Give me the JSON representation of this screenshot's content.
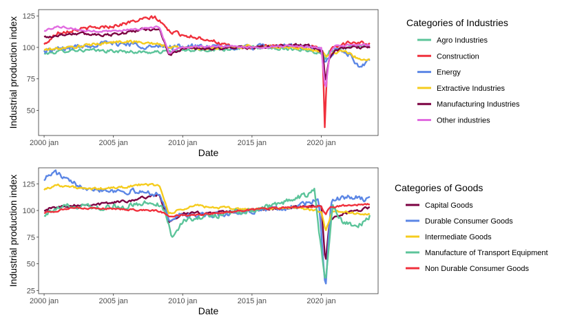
{
  "chart_data": [
    {
      "type": "line",
      "xlabel": "Date",
      "ylabel": "Industrial production index",
      "x_ticks": [
        "2000 jan",
        "2005 jan",
        "2010 jan",
        "2015 jan",
        "2020 jan"
      ],
      "x_range": [
        1999.6,
        2024.1
      ],
      "y_ticks": [
        50,
        75,
        100,
        125
      ],
      "ylim": [
        30,
        130
      ],
      "legend_title": "Categories of Industries",
      "legend_position": "right",
      "series": [
        {
          "name": "Agro Industries",
          "color": "#5cc49a",
          "keypoints": [
            [
              2000.0,
              95
            ],
            [
              2002.0,
              98
            ],
            [
              2005.0,
              97
            ],
            [
              2008.0,
              96
            ],
            [
              2009.0,
              97
            ],
            [
              2012.0,
              98
            ],
            [
              2015.0,
              100
            ],
            [
              2018.0,
              99
            ],
            [
              2020.0,
              96
            ],
            [
              2020.3,
              90
            ],
            [
              2020.6,
              98
            ],
            [
              2022.0,
              100
            ],
            [
              2023.5,
              101
            ]
          ],
          "noise": 2.0
        },
        {
          "name": "Construction",
          "color": "#f0303c",
          "keypoints": [
            [
              2000.0,
              102
            ],
            [
              2001.0,
              112
            ],
            [
              2003.0,
              115
            ],
            [
              2005.0,
              117
            ],
            [
              2007.0,
              122
            ],
            [
              2008.0,
              124
            ],
            [
              2008.6,
              118
            ],
            [
              2009.0,
              113
            ],
            [
              2010.0,
              110
            ],
            [
              2012.0,
              106
            ],
            [
              2013.5,
              100
            ],
            [
              2015.0,
              100
            ],
            [
              2017.0,
              101
            ],
            [
              2019.5,
              101
            ],
            [
              2020.1,
              95
            ],
            [
              2020.25,
              37
            ],
            [
              2020.4,
              80
            ],
            [
              2020.7,
              100
            ],
            [
              2022.0,
              104
            ],
            [
              2023.5,
              103
            ]
          ],
          "noise": 2.2
        },
        {
          "name": "Energy",
          "color": "#5b86e5",
          "keypoints": [
            [
              2000.0,
              97
            ],
            [
              2002.0,
              100
            ],
            [
              2004.0,
              103
            ],
            [
              2006.0,
              103
            ],
            [
              2008.0,
              100
            ],
            [
              2010.0,
              101
            ],
            [
              2012.0,
              100
            ],
            [
              2015.0,
              100
            ],
            [
              2018.0,
              101
            ],
            [
              2020.0,
              98
            ],
            [
              2020.3,
              88
            ],
            [
              2021.0,
              98
            ],
            [
              2022.0,
              95
            ],
            [
              2022.8,
              82
            ],
            [
              2023.5,
              90
            ]
          ],
          "noise": 3.2
        },
        {
          "name": "Extractive Industries",
          "color": "#f5cc1e",
          "keypoints": [
            [
              2000.0,
              98
            ],
            [
              2002.0,
              100
            ],
            [
              2004.0,
              103
            ],
            [
              2006.0,
              105
            ],
            [
              2008.0,
              103
            ],
            [
              2009.0,
              100
            ],
            [
              2010.0,
              100
            ],
            [
              2012.0,
              99
            ],
            [
              2015.0,
              101
            ],
            [
              2018.0,
              100
            ],
            [
              2020.0,
              97
            ],
            [
              2020.3,
              93
            ],
            [
              2021.5,
              98
            ],
            [
              2022.5,
              92
            ],
            [
              2023.5,
              90
            ]
          ],
          "noise": 1.8
        },
        {
          "name": "Manufacturing Industries",
          "color": "#7b0041",
          "keypoints": [
            [
              2000.0,
              108
            ],
            [
              2002.0,
              111
            ],
            [
              2005.0,
              110
            ],
            [
              2007.0,
              114
            ],
            [
              2008.3,
              115
            ],
            [
              2009.0,
              94
            ],
            [
              2010.0,
              99
            ],
            [
              2012.0,
              99
            ],
            [
              2015.0,
              100
            ],
            [
              2019.0,
              102
            ],
            [
              2020.1,
              97
            ],
            [
              2020.3,
              72
            ],
            [
              2020.6,
              92
            ],
            [
              2021.0,
              98
            ],
            [
              2022.0,
              100
            ],
            [
              2023.5,
              100
            ]
          ],
          "noise": 1.8
        },
        {
          "name": "Other industries",
          "color": "#e16be0",
          "keypoints": [
            [
              2000.0,
              113
            ],
            [
              2001.0,
              117
            ],
            [
              2003.0,
              113
            ],
            [
              2005.0,
              113
            ],
            [
              2007.0,
              115
            ],
            [
              2008.3,
              116
            ],
            [
              2009.0,
              96
            ],
            [
              2010.0,
              100
            ],
            [
              2012.0,
              101
            ],
            [
              2015.0,
              100
            ],
            [
              2018.0,
              101
            ],
            [
              2020.0,
              100
            ],
            [
              2020.3,
              65
            ],
            [
              2020.6,
              95
            ],
            [
              2021.0,
              101
            ],
            [
              2022.0,
              102
            ],
            [
              2023.5,
              102
            ]
          ],
          "noise": 1.2
        }
      ]
    },
    {
      "type": "line",
      "xlabel": "Date",
      "ylabel": "Industrial production index",
      "x_ticks": [
        "2000 jan",
        "2005 jan",
        "2010 jan",
        "2015 jan",
        "2020 jan"
      ],
      "x_range": [
        1999.6,
        2024.1
      ],
      "y_ticks": [
        25,
        50,
        75,
        100,
        125
      ],
      "ylim": [
        22,
        140
      ],
      "legend_title": "Categories of Goods",
      "legend_position": "right",
      "series": [
        {
          "name": "Capital Goods",
          "color": "#7b0041",
          "keypoints": [
            [
              2000.0,
              101
            ],
            [
              2002.0,
              105
            ],
            [
              2004.0,
              106
            ],
            [
              2006.0,
              109
            ],
            [
              2008.3,
              115
            ],
            [
              2009.0,
              90
            ],
            [
              2010.0,
              97
            ],
            [
              2012.0,
              98
            ],
            [
              2015.0,
              100
            ],
            [
              2018.0,
              103
            ],
            [
              2020.0,
              104
            ],
            [
              2020.3,
              50
            ],
            [
              2020.6,
              90
            ],
            [
              2021.0,
              96
            ],
            [
              2022.0,
              98
            ],
            [
              2023.5,
              103
            ]
          ],
          "noise": 2.0
        },
        {
          "name": "Durable Consumer Goods",
          "color": "#5b86e5",
          "keypoints": [
            [
              2000.0,
              130
            ],
            [
              2000.8,
              136
            ],
            [
              2002.0,
              125
            ],
            [
              2004.0,
              120
            ],
            [
              2006.0,
              118
            ],
            [
              2008.3,
              116
            ],
            [
              2009.0,
              92
            ],
            [
              2010.0,
              96
            ],
            [
              2012.0,
              95
            ],
            [
              2015.0,
              100
            ],
            [
              2018.0,
              103
            ],
            [
              2019.8,
              110
            ],
            [
              2020.3,
              27
            ],
            [
              2020.7,
              110
            ],
            [
              2021.5,
              112
            ],
            [
              2022.5,
              112
            ],
            [
              2023.5,
              110
            ]
          ],
          "noise": 4.0
        },
        {
          "name": "Intermediate Goods",
          "color": "#f5cc1e",
          "keypoints": [
            [
              2000.0,
              120
            ],
            [
              2001.0,
              124
            ],
            [
              2003.0,
              120
            ],
            [
              2005.0,
              121
            ],
            [
              2007.0,
              124
            ],
            [
              2008.3,
              124
            ],
            [
              2009.0,
              97
            ],
            [
              2011.0,
              105
            ],
            [
              2012.0,
              103
            ],
            [
              2015.0,
              101
            ],
            [
              2018.0,
              103
            ],
            [
              2020.0,
              99
            ],
            [
              2020.3,
              80
            ],
            [
              2020.8,
              100
            ],
            [
              2022.0,
              98
            ],
            [
              2023.5,
              96
            ]
          ],
          "noise": 1.8
        },
        {
          "name": "Manufacture of Transport Equipment",
          "color": "#5cc49a",
          "keypoints": [
            [
              2000.0,
              97
            ],
            [
              2002.0,
              105
            ],
            [
              2004.0,
              103
            ],
            [
              2006.0,
              104
            ],
            [
              2008.0,
              108
            ],
            [
              2008.7,
              100
            ],
            [
              2009.2,
              76
            ],
            [
              2010.0,
              90
            ],
            [
              2012.0,
              95
            ],
            [
              2015.0,
              100
            ],
            [
              2018.0,
              110
            ],
            [
              2019.5,
              118
            ],
            [
              2020.3,
              30
            ],
            [
              2020.8,
              105
            ],
            [
              2021.5,
              90
            ],
            [
              2022.5,
              83
            ],
            [
              2023.5,
              95
            ]
          ],
          "noise": 4.0
        },
        {
          "name": "Non Durable Consumer Goods",
          "color": "#f0303c",
          "keypoints": [
            [
              2000.0,
              98
            ],
            [
              2002.0,
              102
            ],
            [
              2004.0,
              102
            ],
            [
              2006.0,
              101
            ],
            [
              2008.0,
              100
            ],
            [
              2008.6,
              98
            ],
            [
              2009.0,
              95
            ],
            [
              2011.0,
              96
            ],
            [
              2013.0,
              98
            ],
            [
              2015.0,
              101
            ],
            [
              2018.0,
              103
            ],
            [
              2020.0,
              104
            ],
            [
              2020.3,
              96
            ],
            [
              2020.6,
              103
            ],
            [
              2022.0,
              105
            ],
            [
              2023.5,
              106
            ]
          ],
          "noise": 1.3
        }
      ]
    }
  ]
}
